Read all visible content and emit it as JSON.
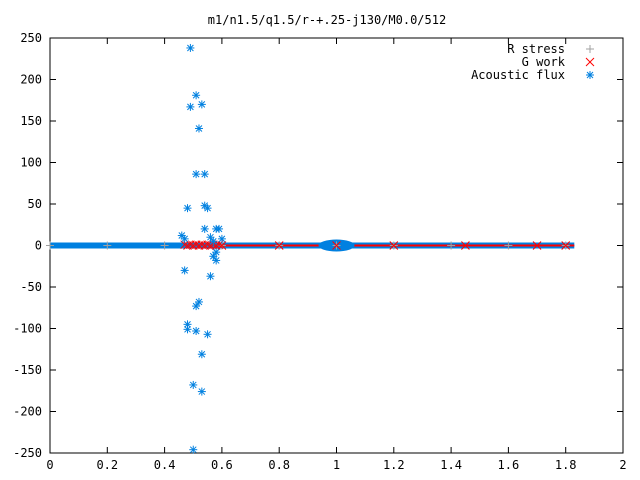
{
  "chart_data": {
    "type": "scatter",
    "title": "m1/n1.5/q1.5/r-+.25-j130/M0.0/512",
    "xlabel": "",
    "ylabel": "",
    "xlim": [
      0,
      2
    ],
    "ylim": [
      -250,
      250
    ],
    "x_ticks": [
      "0",
      "0.2",
      "0.4",
      "0.6",
      "0.8",
      "1",
      "1.2",
      "1.4",
      "1.6",
      "1.8",
      "2"
    ],
    "y_ticks": [
      "250",
      "200",
      "150",
      "100",
      "50",
      "0",
      "-50",
      "-100",
      "-150",
      "-200",
      "-250"
    ],
    "grid": false,
    "legend_position": "top-right",
    "series": [
      {
        "name": "R stress",
        "marker": "+",
        "color": "#a0a0a0",
        "points": [
          [
            0.0,
            0
          ],
          [
            0.2,
            0
          ],
          [
            0.4,
            0
          ],
          [
            0.6,
            0
          ],
          [
            0.8,
            0
          ],
          [
            1.0,
            0
          ],
          [
            1.2,
            0
          ],
          [
            1.4,
            0
          ],
          [
            1.6,
            0
          ],
          [
            1.8,
            0
          ]
        ]
      },
      {
        "name": "G work",
        "marker": "x",
        "color": "#ff0000",
        "points": [
          [
            0.47,
            1
          ],
          [
            0.48,
            0
          ],
          [
            0.49,
            1
          ],
          [
            0.5,
            0
          ],
          [
            0.51,
            1
          ],
          [
            0.52,
            0
          ],
          [
            0.53,
            1
          ],
          [
            0.54,
            0
          ],
          [
            0.55,
            1
          ],
          [
            0.56,
            0
          ],
          [
            0.57,
            1
          ],
          [
            0.58,
            0
          ],
          [
            0.59,
            1
          ],
          [
            0.6,
            0
          ],
          [
            0.8,
            0
          ],
          [
            1.0,
            0
          ],
          [
            1.2,
            0
          ],
          [
            1.45,
            0
          ],
          [
            1.7,
            0
          ],
          [
            1.8,
            0
          ]
        ]
      },
      {
        "name": "Acoustic flux",
        "marker": "*",
        "color": "#0080e0",
        "points": [
          [
            0.49,
            238
          ],
          [
            0.51,
            181
          ],
          [
            0.49,
            167
          ],
          [
            0.53,
            170
          ],
          [
            0.52,
            141
          ],
          [
            0.51,
            86
          ],
          [
            0.54,
            86
          ],
          [
            0.54,
            48
          ],
          [
            0.55,
            45
          ],
          [
            0.48,
            45
          ],
          [
            0.58,
            20
          ],
          [
            0.59,
            20
          ],
          [
            0.54,
            20
          ],
          [
            0.46,
            12
          ],
          [
            0.47,
            8
          ],
          [
            0.56,
            10
          ],
          [
            0.6,
            8
          ],
          [
            0.57,
            5
          ],
          [
            0.58,
            -8
          ],
          [
            0.57,
            -13
          ],
          [
            0.58,
            -18
          ],
          [
            0.47,
            -30
          ],
          [
            0.56,
            -37
          ],
          [
            0.48,
            -95
          ],
          [
            0.48,
            -101
          ],
          [
            0.51,
            -103
          ],
          [
            0.52,
            -68
          ],
          [
            0.51,
            -73
          ],
          [
            0.55,
            -107
          ],
          [
            0.53,
            -131
          ],
          [
            0.5,
            -168
          ],
          [
            0.53,
            -176
          ],
          [
            0.5,
            -246
          ]
        ]
      }
    ]
  }
}
